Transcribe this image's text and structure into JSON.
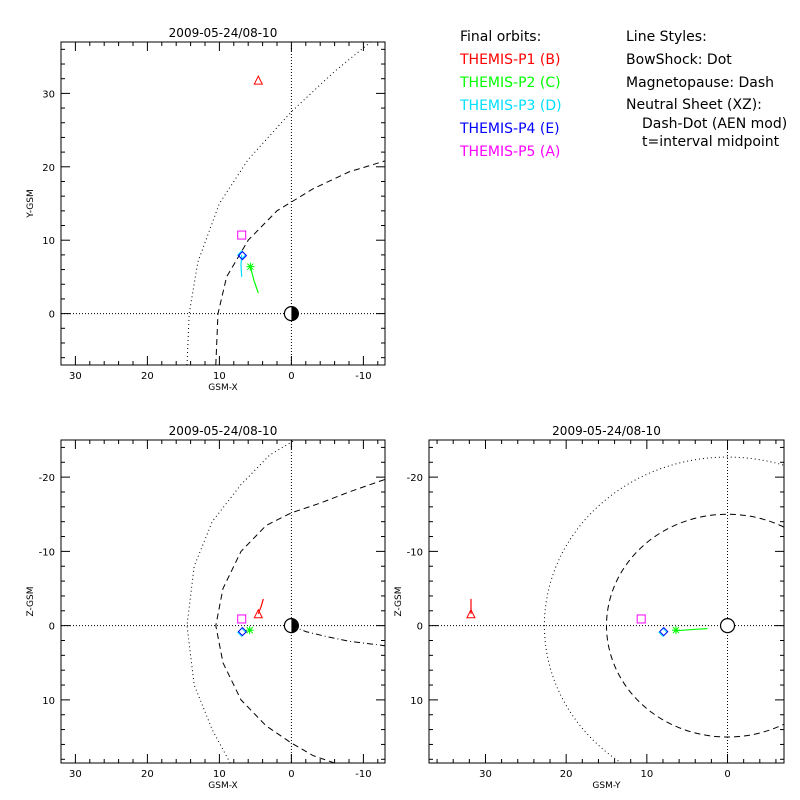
{
  "legend_left": {
    "heading": "Final orbits:",
    "items": [
      {
        "label": "THEMIS-P1 (B)",
        "color": "#ff0000"
      },
      {
        "label": "THEMIS-P2 (C)",
        "color": "#00ff00"
      },
      {
        "label": "THEMIS-P3 (D)",
        "color": "#00e0ff"
      },
      {
        "label": "THEMIS-P4 (E)",
        "color": "#0000ff"
      },
      {
        "label": "THEMIS-P5 (A)",
        "color": "#ff00ff"
      }
    ]
  },
  "legend_right": {
    "heading": "Line Styles:",
    "items": [
      "BowShock: Dot",
      "Magnetopause: Dash",
      "Neutral Sheet (XZ):",
      "Dash-Dot (AEN mod)",
      "t=interval midpoint"
    ]
  },
  "chart_data": [
    {
      "type": "scatter",
      "title": "2009-05-24/08-10",
      "xlabel": "GSM-X",
      "ylabel": "Y-GSM",
      "xlim": [
        32,
        -13
      ],
      "ylim": [
        37,
        -7
      ],
      "xticks": [
        30,
        20,
        10,
        0,
        -10
      ],
      "yticks": [
        0,
        10,
        20,
        30
      ],
      "earth": [
        0,
        0
      ],
      "bow_shock": {
        "style": "dot",
        "points": [
          [
            14.5,
            -7
          ],
          [
            14.2,
            0
          ],
          [
            13,
            7
          ],
          [
            10,
            15
          ],
          [
            6,
            21
          ],
          [
            0,
            27.5
          ],
          [
            -6,
            33
          ],
          [
            -11,
            37
          ]
        ]
      },
      "magnetopause": {
        "style": "dash",
        "points": [
          [
            10.5,
            -7
          ],
          [
            10.2,
            0
          ],
          [
            9,
            5
          ],
          [
            6,
            10
          ],
          [
            2,
            14
          ],
          [
            -3,
            17
          ],
          [
            -8,
            19.3
          ],
          [
            -13,
            20.8
          ]
        ]
      },
      "tracks": [
        {
          "spacecraft": "THEMIS-P2 (C)",
          "color": "#00ff00",
          "marker": "asterisk",
          "points": [
            [
              4.6,
              2.8
            ],
            [
              5.2,
              4.5
            ],
            [
              5.7,
              6.4
            ]
          ]
        },
        {
          "spacecraft": "THEMIS-P3 (D)",
          "color": "#00e0ff",
          "marker": "diamond",
          "points": [
            [
              6.9,
              5.0
            ],
            [
              7.0,
              6.6
            ],
            [
              6.9,
              8.0
            ]
          ]
        }
      ],
      "markers": [
        {
          "spacecraft": "THEMIS-P1 (B)",
          "color": "#ff0000",
          "marker": "triangle",
          "x": 4.6,
          "y": 31.8
        },
        {
          "spacecraft": "THEMIS-P2 (C)",
          "color": "#00ff00",
          "marker": "asterisk",
          "x": 5.7,
          "y": 6.4
        },
        {
          "spacecraft": "THEMIS-P3 (D)",
          "color": "#00e0ff",
          "marker": "diamond",
          "x": 6.9,
          "y": 8.0
        },
        {
          "spacecraft": "THEMIS-P4 (E)",
          "color": "#0000ff",
          "marker": "diamond",
          "x": 6.8,
          "y": 7.9
        },
        {
          "spacecraft": "THEMIS-P5 (A)",
          "color": "#ff00ff",
          "marker": "square",
          "x": 6.9,
          "y": 10.7
        }
      ]
    },
    {
      "type": "scatter",
      "title": "2009-05-24/08-10",
      "xlabel": "GSM-X",
      "ylabel": "Z-GSM",
      "xlim": [
        32,
        -13
      ],
      "ylim": [
        -25,
        18.5
      ],
      "xticks": [
        30,
        20,
        10,
        0,
        -10
      ],
      "yticks": [
        10,
        0,
        -10,
        -20
      ],
      "earth": [
        0,
        0
      ],
      "bow_shock": {
        "style": "dot",
        "points": [
          [
            8.5,
            18.5
          ],
          [
            11,
            14
          ],
          [
            13.5,
            8
          ],
          [
            14.5,
            0
          ],
          [
            13.5,
            -8
          ],
          [
            11,
            -14
          ],
          [
            7,
            -19
          ],
          [
            3,
            -23
          ],
          [
            -0.5,
            -25
          ]
        ]
      },
      "magnetopause": {
        "style": "dash",
        "points": [
          [
            -6,
            18.5
          ],
          [
            -3,
            17.5
          ],
          [
            0,
            15.8
          ],
          [
            3.5,
            13.5
          ],
          [
            7,
            10
          ],
          [
            9.5,
            5
          ],
          [
            10.5,
            0
          ],
          [
            9.5,
            -5
          ],
          [
            7,
            -10
          ],
          [
            3.5,
            -13.5
          ],
          [
            0,
            -15.2
          ],
          [
            -4,
            -16.5
          ],
          [
            -8,
            -18
          ],
          [
            -13,
            -19.7
          ]
        ]
      },
      "neutral_sheet": {
        "style": "dashdot",
        "points": [
          [
            0,
            0
          ],
          [
            -2,
            0.8
          ],
          [
            -5,
            1.5
          ],
          [
            -8,
            2.1
          ],
          [
            -13,
            2.7
          ]
        ]
      },
      "tracks": [
        {
          "spacecraft": "THEMIS-P1 (B)",
          "color": "#ff0000",
          "marker": "triangle",
          "points": [
            [
              4.6,
              -1.6
            ],
            [
              4.2,
              -2.6
            ],
            [
              3.9,
              -3.6
            ]
          ]
        },
        {
          "spacecraft": "THEMIS-P2 (C)",
          "color": "#00ff00",
          "marker": "asterisk",
          "points": [
            [
              5.4,
              0.6
            ],
            [
              5.8,
              0.6
            ]
          ]
        }
      ],
      "markers": [
        {
          "spacecraft": "THEMIS-P1 (B)",
          "color": "#ff0000",
          "marker": "triangle",
          "x": 4.6,
          "y": -1.6
        },
        {
          "spacecraft": "THEMIS-P2 (C)",
          "color": "#00ff00",
          "marker": "asterisk",
          "x": 5.8,
          "y": 0.6
        },
        {
          "spacecraft": "THEMIS-P3 (D)",
          "color": "#00e0ff",
          "marker": "diamond",
          "x": 6.9,
          "y": 0.9
        },
        {
          "spacecraft": "THEMIS-P4 (E)",
          "color": "#0000ff",
          "marker": "diamond",
          "x": 6.8,
          "y": 0.8
        },
        {
          "spacecraft": "THEMIS-P5 (A)",
          "color": "#ff00ff",
          "marker": "square",
          "x": 6.9,
          "y": -0.9
        }
      ]
    },
    {
      "type": "scatter",
      "title": "2009-05-24/08-10",
      "xlabel": "GSM-Y",
      "ylabel": "Z-GSM",
      "xlim": [
        37,
        -7
      ],
      "ylim": [
        -25,
        18.5
      ],
      "xticks": [
        30,
        20,
        10,
        0
      ],
      "yticks": [
        10,
        0,
        -10,
        -20
      ],
      "earth": [
        0,
        0
      ],
      "bow_shock": {
        "style": "dot",
        "circle": {
          "cx": 0,
          "cy": 0,
          "r": 22.7
        }
      },
      "magnetopause": {
        "style": "dash",
        "circle": {
          "cx": 0,
          "cy": 0,
          "r": 15
        }
      },
      "tracks": [
        {
          "spacecraft": "THEMIS-P2 (C)",
          "color": "#00ff00",
          "marker": "asterisk",
          "points": [
            [
              6.5,
              0.7
            ],
            [
              4,
              0.5
            ],
            [
              2.5,
              0.4
            ]
          ]
        },
        {
          "spacecraft": "THEMIS-P1 (B)",
          "color": "#ff0000",
          "marker": "triangle",
          "points": [
            [
              31.8,
              -1.6
            ],
            [
              31.8,
              -3.6
            ]
          ]
        }
      ],
      "markers": [
        {
          "spacecraft": "THEMIS-P1 (B)",
          "color": "#ff0000",
          "marker": "triangle",
          "x": 31.8,
          "y": -1.6
        },
        {
          "spacecraft": "THEMIS-P2 (C)",
          "color": "#00ff00",
          "marker": "asterisk",
          "x": 6.4,
          "y": 0.6
        },
        {
          "spacecraft": "THEMIS-P3 (D)",
          "color": "#00e0ff",
          "marker": "diamond",
          "x": 8.0,
          "y": 0.9
        },
        {
          "spacecraft": "THEMIS-P4 (E)",
          "color": "#0000ff",
          "marker": "diamond",
          "x": 7.9,
          "y": 0.8
        },
        {
          "spacecraft": "THEMIS-P5 (A)",
          "color": "#ff00ff",
          "marker": "square",
          "x": 10.7,
          "y": -0.9
        }
      ]
    }
  ]
}
